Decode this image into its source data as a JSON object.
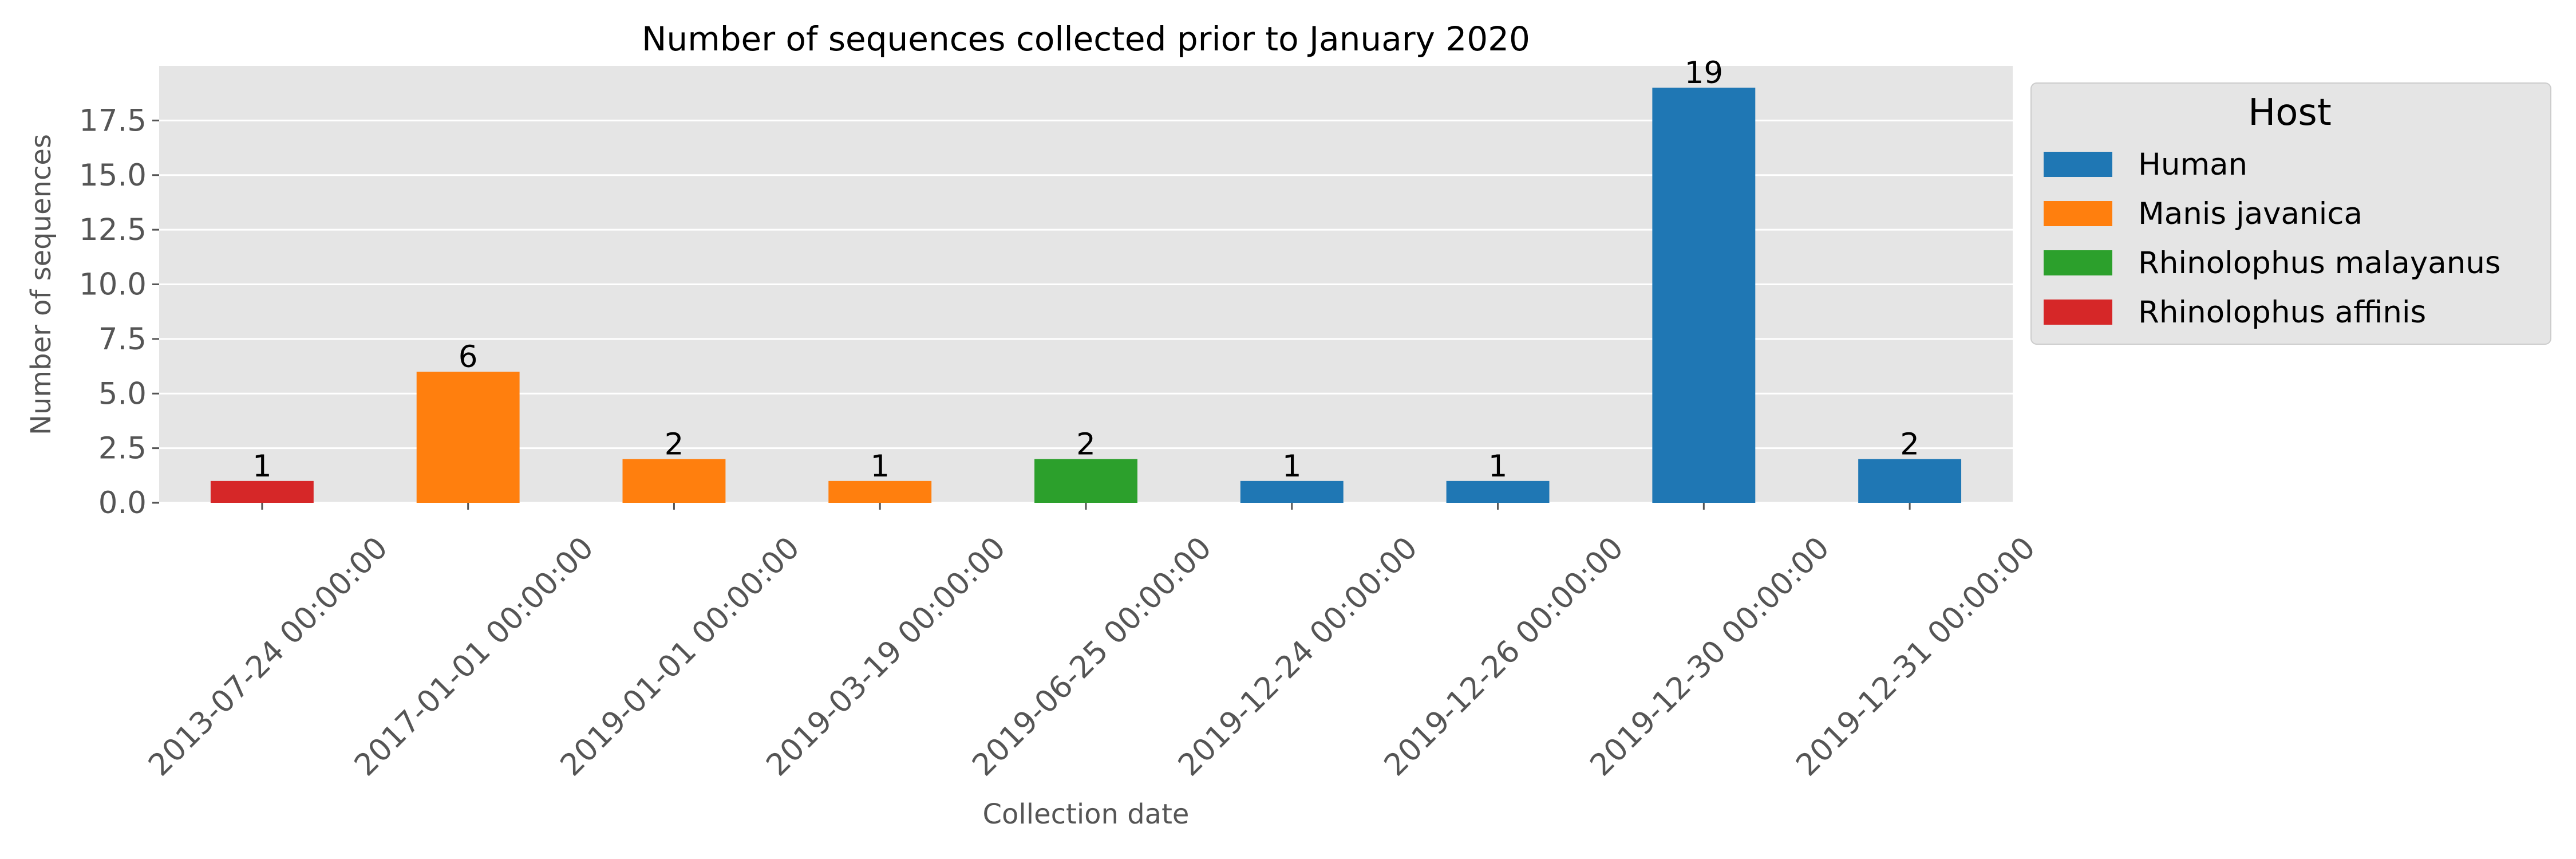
{
  "chart_data": {
    "type": "bar",
    "title": "Number of sequences collected prior to January 2020",
    "xlabel": "Collection date",
    "ylabel": "Number of sequences",
    "categories": [
      "2013-07-24 00:00:00",
      "2017-01-01 00:00:00",
      "2019-01-01 00:00:00",
      "2019-03-19 00:00:00",
      "2019-06-25 00:00:00",
      "2019-12-24 00:00:00",
      "2019-12-26 00:00:00",
      "2019-12-30 00:00:00",
      "2019-12-31 00:00:00"
    ],
    "values": [
      1,
      6,
      2,
      1,
      2,
      1,
      1,
      19,
      2
    ],
    "hosts": [
      "Rhinolophus affinis",
      "Manis javanica",
      "Manis javanica",
      "Manis javanica",
      "Rhinolophus malayanus",
      "Human",
      "Human",
      "Human",
      "Human"
    ],
    "ylim": [
      0,
      20
    ],
    "yticks": [
      "0.0",
      "2.5",
      "5.0",
      "7.5",
      "10.0",
      "12.5",
      "15.0",
      "17.5"
    ],
    "grid": true,
    "legend": {
      "title": "Host",
      "placement": "outside-upper-right",
      "entries": [
        {
          "name": "Human",
          "color": "#1f77b4"
        },
        {
          "name": "Manis javanica",
          "color": "#ff7f0e"
        },
        {
          "name": "Rhinolophus malayanus",
          "color": "#2ca02c"
        },
        {
          "name": "Rhinolophus affinis",
          "color": "#d62728"
        }
      ]
    },
    "colors": {
      "plot_background": "#e5e5e5",
      "grid": "#ffffff"
    }
  }
}
